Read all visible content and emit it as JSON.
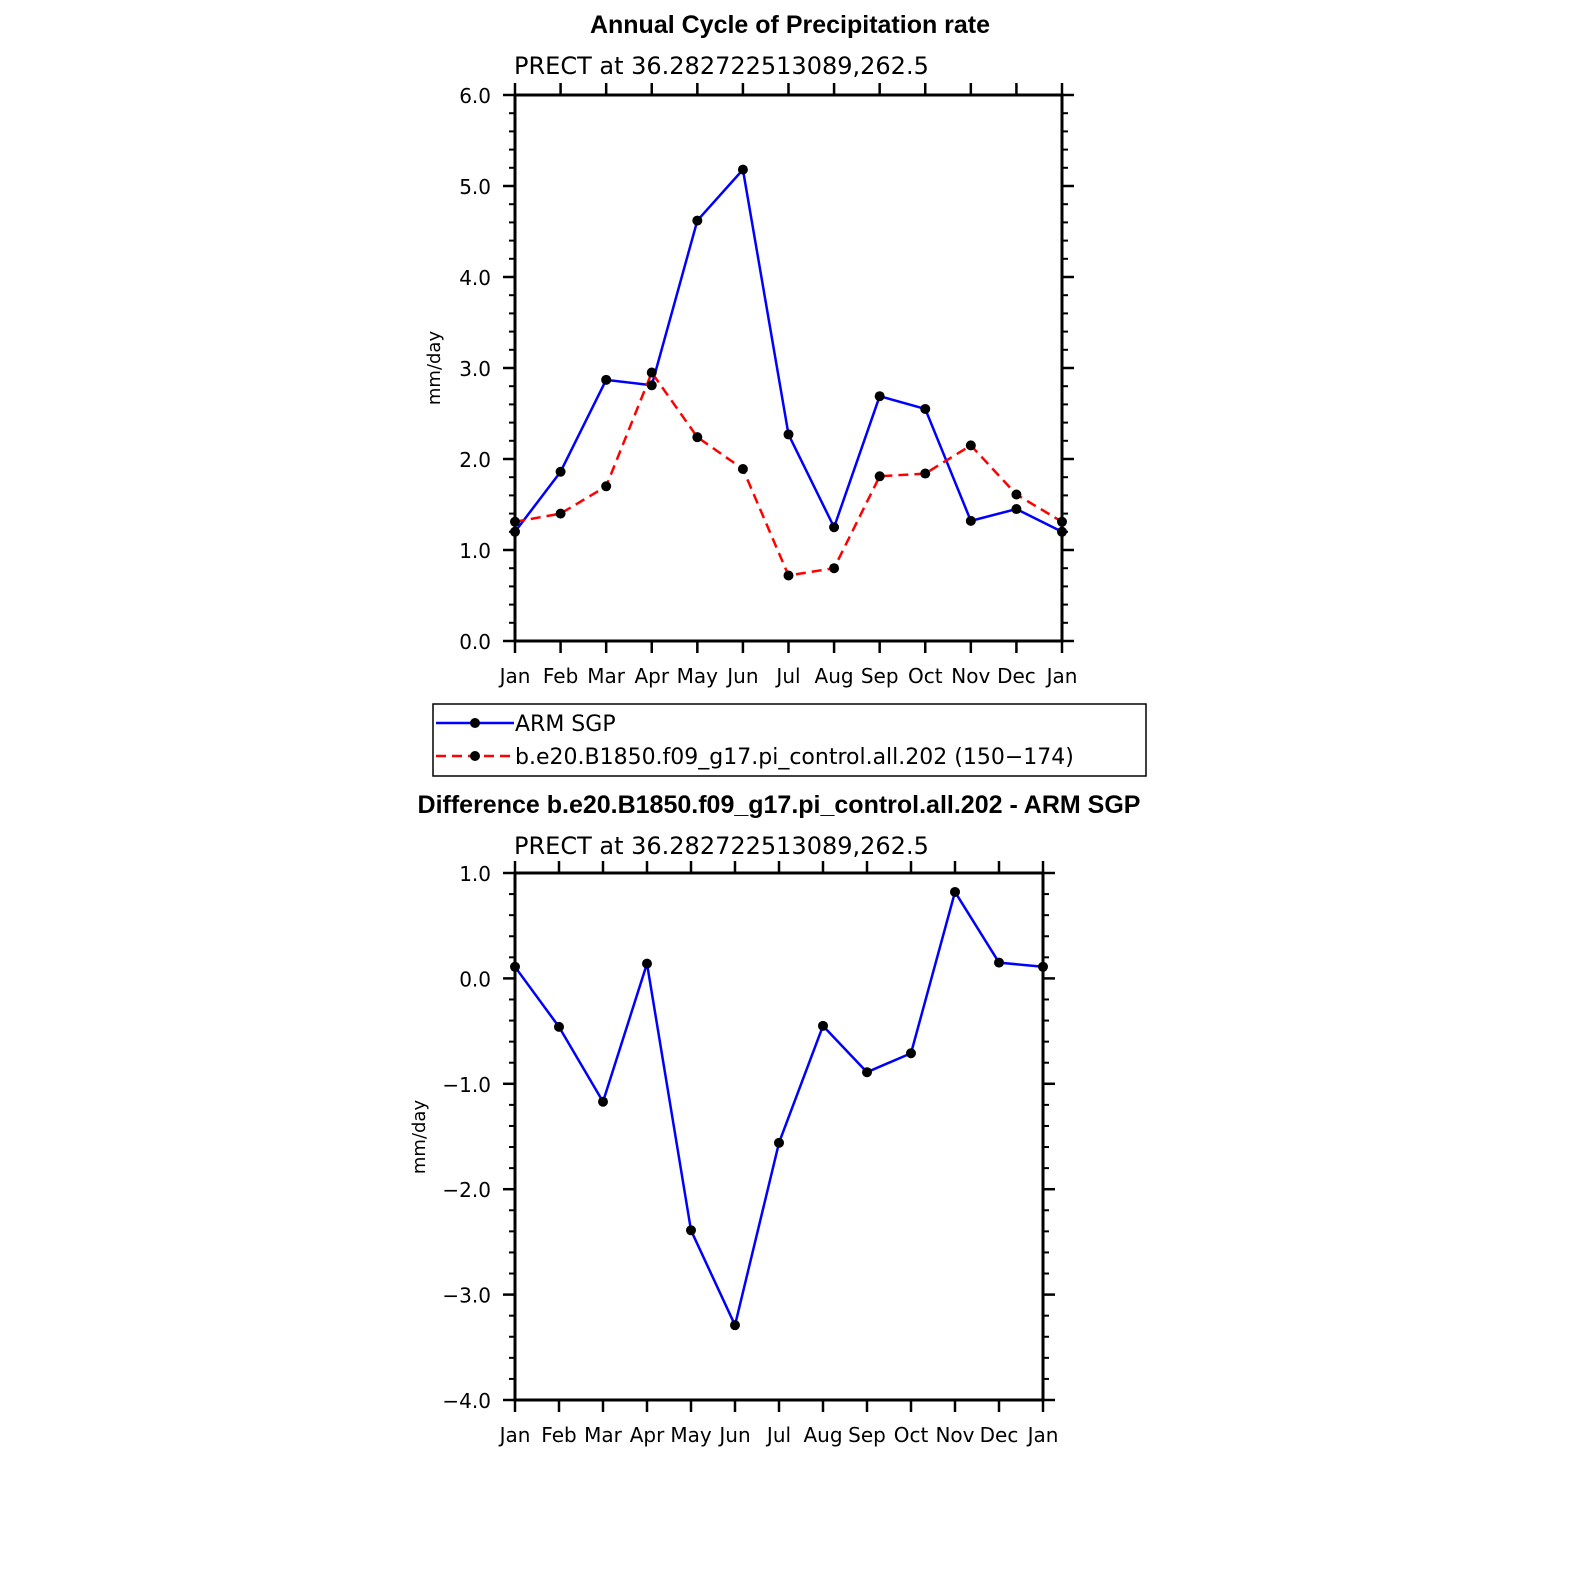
{
  "colors": {
    "obs": "#0000ff",
    "model": "#ff0000",
    "axis": "#000000",
    "marker": "#000000"
  },
  "chart_data": [
    {
      "type": "line",
      "title": "Annual Cycle of Precipitation rate",
      "subtitle": "PRECT at 36.282722513089,262.5",
      "ylabel": "mm/day",
      "xlabel": "",
      "categories": [
        "Jan",
        "Feb",
        "Mar",
        "Apr",
        "May",
        "Jun",
        "Jul",
        "Aug",
        "Sep",
        "Oct",
        "Nov",
        "Dec",
        "Jan"
      ],
      "ylim": [
        0.0,
        6.0
      ],
      "yticks": [
        "0.0",
        "1.0",
        "2.0",
        "3.0",
        "4.0",
        "5.0",
        "6.0"
      ],
      "grid": false,
      "legend_position": "bottom",
      "series": [
        {
          "name": "ARM SGP",
          "style": "solid",
          "color": "#0000ff",
          "values": [
            1.2,
            1.86,
            2.87,
            2.81,
            4.62,
            5.18,
            2.27,
            1.25,
            2.69,
            2.55,
            1.32,
            1.45,
            1.2
          ]
        },
        {
          "name": "b.e20.B1850.f09_g17.pi_control.all.202 (150−174)",
          "style": "dashed",
          "color": "#ff0000",
          "values": [
            1.31,
            1.4,
            1.7,
            2.95,
            2.24,
            1.89,
            0.72,
            0.8,
            1.81,
            1.84,
            2.15,
            1.61,
            1.31
          ]
        }
      ]
    },
    {
      "type": "line",
      "title": "Difference b.e20.B1850.f09_g17.pi_control.all.202 - ARM SGP",
      "subtitle": "PRECT at 36.282722513089,262.5",
      "ylabel": "mm/day",
      "xlabel": "",
      "categories": [
        "Jan",
        "Feb",
        "Mar",
        "Apr",
        "May",
        "Jun",
        "Jul",
        "Aug",
        "Sep",
        "Oct",
        "Nov",
        "Dec",
        "Jan"
      ],
      "ylim": [
        -4.0,
        1.0
      ],
      "yticks": [
        "−4.0",
        "−3.0",
        "−2.0",
        "−1.0",
        "0.0",
        "1.0"
      ],
      "grid": false,
      "series": [
        {
          "style": "solid",
          "color": "#0000ff",
          "values": [
            0.11,
            -0.46,
            -1.17,
            0.14,
            -2.39,
            -3.29,
            -1.56,
            -0.45,
            -0.89,
            -0.71,
            0.82,
            0.15,
            0.11
          ]
        }
      ]
    }
  ]
}
